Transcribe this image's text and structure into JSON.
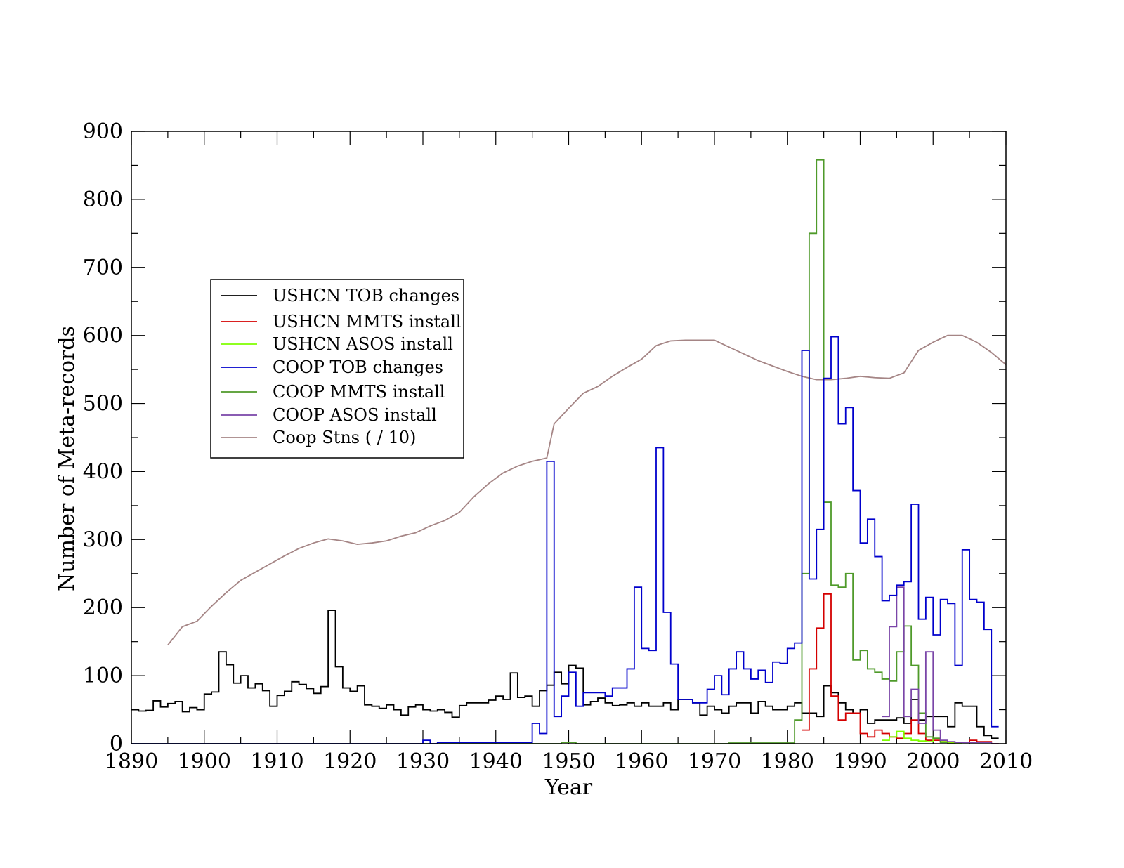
{
  "chart_data": {
    "type": "line",
    "step": true,
    "title": "",
    "xlabel": "Year",
    "ylabel": "Number of Meta-records",
    "xlim": [
      1890,
      2010
    ],
    "ylim": [
      0,
      900
    ],
    "x_ticks": [
      "1890",
      "1900",
      "1910",
      "1920",
      "1930",
      "1940",
      "1950",
      "1960",
      "1970",
      "1980",
      "1990",
      "2000",
      "2010"
    ],
    "y_ticks": [
      "0",
      "100",
      "200",
      "300",
      "400",
      "500",
      "600",
      "700",
      "800",
      "900"
    ],
    "legend_position": "left-center",
    "series": [
      {
        "name": "USHCN TOB changes",
        "color": "#000000",
        "style": "step",
        "x": [
          1890,
          1891,
          1892,
          1893,
          1894,
          1895,
          1896,
          1897,
          1898,
          1899,
          1900,
          1901,
          1902,
          1903,
          1904,
          1905,
          1906,
          1907,
          1908,
          1909,
          1910,
          1911,
          1912,
          1913,
          1914,
          1915,
          1916,
          1917,
          1918,
          1919,
          1920,
          1921,
          1922,
          1923,
          1924,
          1925,
          1926,
          1927,
          1928,
          1929,
          1930,
          1931,
          1932,
          1933,
          1934,
          1935,
          1936,
          1937,
          1938,
          1939,
          1940,
          1941,
          1942,
          1943,
          1944,
          1945,
          1946,
          1947,
          1948,
          1949,
          1950,
          1951,
          1952,
          1953,
          1954,
          1955,
          1956,
          1957,
          1958,
          1959,
          1960,
          1961,
          1962,
          1963,
          1964,
          1965,
          1966,
          1967,
          1968,
          1969,
          1970,
          1971,
          1972,
          1973,
          1974,
          1975,
          1976,
          1977,
          1978,
          1979,
          1980,
          1981,
          1982,
          1983,
          1984,
          1985,
          1986,
          1987,
          1988,
          1989,
          1990,
          1991,
          1992,
          1993,
          1994,
          1995,
          1996,
          1997,
          1998,
          1999,
          2000,
          2001,
          2002,
          2003,
          2004,
          2005,
          2006,
          2007,
          2008
        ],
        "values": [
          50,
          48,
          49,
          63,
          54,
          59,
          62,
          47,
          53,
          50,
          73,
          76,
          135,
          116,
          89,
          100,
          82,
          88,
          78,
          55,
          71,
          77,
          91,
          87,
          81,
          74,
          84,
          196,
          113,
          82,
          77,
          85,
          57,
          55,
          52,
          57,
          50,
          42,
          54,
          57,
          50,
          48,
          50,
          46,
          39,
          56,
          60,
          60,
          60,
          64,
          70,
          65,
          104,
          68,
          70,
          55,
          78,
          86,
          105,
          88,
          115,
          111,
          57,
          62,
          67,
          60,
          56,
          57,
          60,
          55,
          60,
          55,
          55,
          60,
          50,
          65,
          65,
          60,
          42,
          55,
          50,
          45,
          55,
          60,
          60,
          45,
          62,
          55,
          50,
          50,
          55,
          60,
          45,
          45,
          40,
          85,
          75,
          60,
          50,
          45,
          50,
          30,
          35,
          35,
          35,
          38,
          30,
          65,
          35,
          40,
          40,
          40,
          25,
          60,
          55,
          55,
          25,
          12,
          8
        ]
      },
      {
        "name": "USHCN MMTS install",
        "color": "#d40000",
        "style": "step",
        "x": [
          1982,
          1983,
          1984,
          1985,
          1986,
          1987,
          1988,
          1989,
          1990,
          1991,
          1992,
          1993,
          1994,
          1995,
          1996,
          1997,
          1998,
          1999,
          2000,
          2001,
          2002,
          2003,
          2004,
          2005,
          2006,
          2007,
          2008
        ],
        "values": [
          20,
          110,
          170,
          220,
          70,
          35,
          45,
          45,
          15,
          10,
          20,
          15,
          10,
          8,
          15,
          35,
          15,
          5,
          5,
          3,
          2,
          2,
          2,
          5,
          3,
          3,
          0
        ]
      },
      {
        "name": "USHCN ASOS install",
        "color": "#7fff00",
        "style": "step",
        "x": [
          1993,
          1994,
          1995,
          1996,
          1997,
          1998,
          1999,
          2000,
          2001,
          2002,
          2003
        ],
        "values": [
          5,
          10,
          18,
          8,
          5,
          4,
          3,
          8,
          3,
          1,
          0
        ]
      },
      {
        "name": "COOP TOB changes",
        "color": "#0000cc",
        "style": "step",
        "x": [
          1890,
          1930,
          1931,
          1932,
          1945,
          1946,
          1947,
          1948,
          1949,
          1950,
          1951,
          1952,
          1953,
          1954,
          1955,
          1956,
          1957,
          1958,
          1959,
          1960,
          1961,
          1962,
          1963,
          1964,
          1965,
          1966,
          1967,
          1968,
          1969,
          1970,
          1971,
          1972,
          1973,
          1974,
          1975,
          1976,
          1977,
          1978,
          1979,
          1980,
          1981,
          1982,
          1983,
          1984,
          1985,
          1986,
          1987,
          1988,
          1989,
          1990,
          1991,
          1992,
          1993,
          1994,
          1995,
          1996,
          1997,
          1998,
          1999,
          2000,
          2001,
          2002,
          2003,
          2004,
          2005,
          2006,
          2007,
          2008
        ],
        "values": [
          0,
          5,
          0,
          2,
          30,
          15,
          415,
          40,
          70,
          105,
          55,
          75,
          75,
          75,
          70,
          82,
          82,
          110,
          230,
          140,
          137,
          435,
          193,
          117,
          65,
          65,
          60,
          60,
          80,
          100,
          72,
          110,
          135,
          110,
          95,
          108,
          90,
          120,
          118,
          140,
          148,
          578,
          242,
          315,
          537,
          598,
          470,
          494,
          372,
          295,
          330,
          275,
          210,
          218,
          233,
          238,
          352,
          183,
          215,
          160,
          212,
          206,
          115,
          285,
          212,
          208,
          168,
          25
        ]
      },
      {
        "name": "COOP MMTS install",
        "color": "#4f9a2a",
        "style": "step",
        "x": [
          1890,
          1949,
          1951,
          1972,
          1981,
          1982,
          1983,
          1984,
          1985,
          1986,
          1987,
          1988,
          1989,
          1990,
          1991,
          1992,
          1993,
          1994,
          1995,
          1996,
          1997,
          1998,
          1999,
          2000,
          2001,
          2002
        ],
        "values": [
          0,
          2,
          0,
          1,
          35,
          250,
          750,
          858,
          355,
          233,
          230,
          250,
          123,
          137,
          110,
          105,
          95,
          92,
          135,
          173,
          115,
          45,
          10,
          8,
          2,
          0
        ]
      },
      {
        "name": "COOP ASOS install",
        "color": "#7a45a8",
        "style": "step",
        "x": [
          1993,
          1994,
          1995,
          1996,
          1997,
          1998,
          1999,
          2000,
          2001,
          2002,
          2003,
          2004,
          2005,
          2006,
          2007,
          2008
        ],
        "values": [
          40,
          172,
          230,
          40,
          80,
          30,
          135,
          20,
          5,
          3,
          2,
          2,
          2,
          2,
          2,
          0
        ]
      },
      {
        "name": "Coop Stns ( / 10)",
        "color": "#a58585",
        "style": "line",
        "x": [
          1895,
          1897,
          1899,
          1901,
          1903,
          1905,
          1907,
          1909,
          1911,
          1913,
          1915,
          1917,
          1919,
          1921,
          1923,
          1925,
          1927,
          1929,
          1931,
          1933,
          1935,
          1937,
          1939,
          1941,
          1943,
          1945,
          1947,
          1948,
          1950,
          1952,
          1954,
          1956,
          1958,
          1960,
          1962,
          1964,
          1966,
          1968,
          1970,
          1972,
          1974,
          1976,
          1978,
          1980,
          1982,
          1984,
          1986,
          1988,
          1990,
          1992,
          1994,
          1996,
          1998,
          2000,
          2002,
          2004,
          2006,
          2008,
          2010
        ],
        "values": [
          145,
          172,
          180,
          202,
          222,
          240,
          252,
          264,
          276,
          287,
          295,
          301,
          298,
          293,
          295,
          298,
          305,
          310,
          320,
          328,
          340,
          363,
          382,
          398,
          408,
          415,
          420,
          470,
          493,
          515,
          525,
          540,
          553,
          565,
          585,
          592,
          593,
          593,
          593,
          583,
          573,
          563,
          555,
          547,
          540,
          535,
          535,
          537,
          540,
          538,
          537,
          545,
          578,
          590,
          600,
          600,
          590,
          575,
          557
        ]
      }
    ]
  }
}
